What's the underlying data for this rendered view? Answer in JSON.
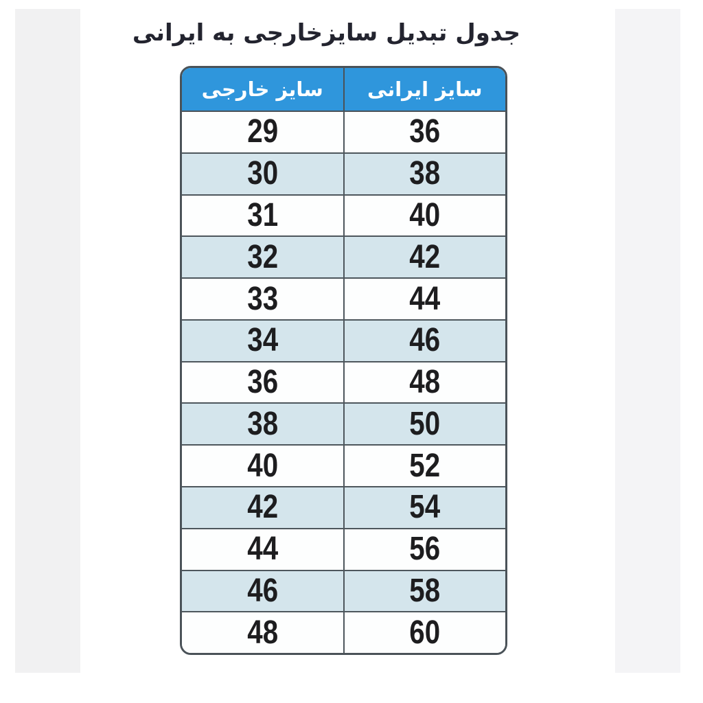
{
  "title": "جدول تبدیل سایزخارجی به ایرانی",
  "table": {
    "headers": {
      "foreign": "سایز خارجی",
      "iranian": "سایز ایرانی"
    },
    "rows": [
      {
        "foreign": "29",
        "iranian": "36"
      },
      {
        "foreign": "30",
        "iranian": "38"
      },
      {
        "foreign": "31",
        "iranian": "40"
      },
      {
        "foreign": "32",
        "iranian": "42"
      },
      {
        "foreign": "33",
        "iranian": "44"
      },
      {
        "foreign": "34",
        "iranian": "46"
      },
      {
        "foreign": "36",
        "iranian": "48"
      },
      {
        "foreign": "38",
        "iranian": "50"
      },
      {
        "foreign": "40",
        "iranian": "52"
      },
      {
        "foreign": "42",
        "iranian": "54"
      },
      {
        "foreign": "44",
        "iranian": "56"
      },
      {
        "foreign": "46",
        "iranian": "58"
      },
      {
        "foreign": "48",
        "iranian": "60"
      }
    ]
  },
  "colors": {
    "header_bg": "#2f96dc",
    "header_text": "#ffffff",
    "row_bg": "#fdfefe",
    "row_alt_bg": "#d4e5ec",
    "border": "#4a5258",
    "title_text": "#23242f",
    "number_text": "#1d1d1f",
    "side_strip": "#f1f1f2"
  },
  "chart_data": {
    "type": "table",
    "title": "جدول تبدیل سایزخارجی به ایرانی",
    "columns": [
      "سایز خارجی",
      "سایز ایرانی"
    ],
    "rows": [
      [
        29,
        36
      ],
      [
        30,
        38
      ],
      [
        31,
        40
      ],
      [
        32,
        42
      ],
      [
        33,
        44
      ],
      [
        34,
        46
      ],
      [
        36,
        48
      ],
      [
        38,
        50
      ],
      [
        40,
        52
      ],
      [
        42,
        54
      ],
      [
        44,
        56
      ],
      [
        46,
        58
      ],
      [
        48,
        60
      ]
    ]
  }
}
